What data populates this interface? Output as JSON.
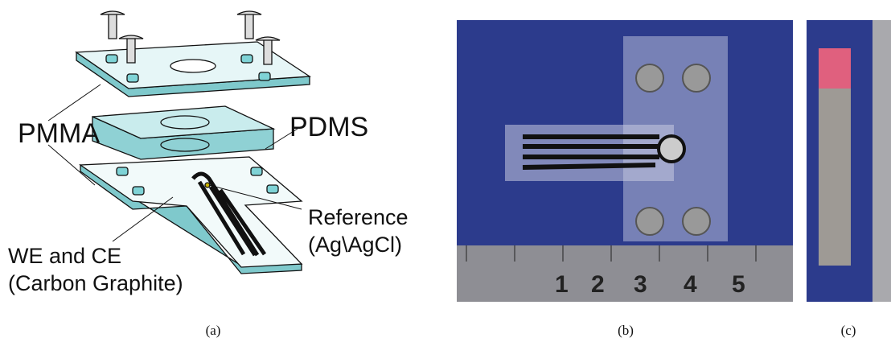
{
  "panel_a": {
    "pmma": "PMMA",
    "pdms": "PDMS",
    "reference": "Reference",
    "reference_material": "(Ag\\AgCl)",
    "electrodes": "WE and CE",
    "electrodes_material": "(Carbon Graphite)"
  },
  "panel_b": {
    "ruler_labels": [
      "1",
      "2",
      "3",
      "4",
      "5"
    ]
  },
  "captions": [
    "(a)",
    "(b)",
    "(c)"
  ]
}
